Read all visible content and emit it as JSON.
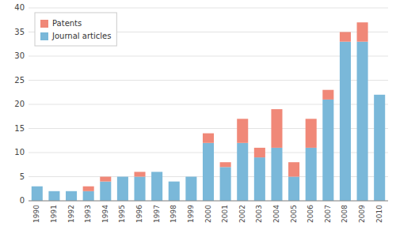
{
  "chart_data": {
    "type": "bar",
    "stacked": true,
    "categories": [
      "1990",
      "1991",
      "1992",
      "1993",
      "1994",
      "1995",
      "1996",
      "1997",
      "1998",
      "1999",
      "2000",
      "2001",
      "2002",
      "2003",
      "2004",
      "2005",
      "2006",
      "2007",
      "2008",
      "2009",
      "2010"
    ],
    "series": [
      {
        "name": "Journal articles",
        "color": "#7ab8d9",
        "values": [
          3,
          2,
          2,
          2,
          4,
          5,
          5,
          6,
          4,
          5,
          12,
          7,
          12,
          9,
          11,
          5,
          11,
          21,
          33,
          33,
          22
        ]
      },
      {
        "name": "Patents",
        "color": "#f08878",
        "values": [
          0,
          0,
          0,
          1,
          1,
          0,
          1,
          0,
          0,
          0,
          2,
          1,
          5,
          2,
          8,
          3,
          6,
          2,
          2,
          4,
          0
        ]
      }
    ],
    "ylim": [
      0,
      40
    ],
    "yticks": [
      0,
      5,
      10,
      15,
      20,
      25,
      30,
      35,
      40
    ],
    "grid": true,
    "legend": "upper left"
  }
}
